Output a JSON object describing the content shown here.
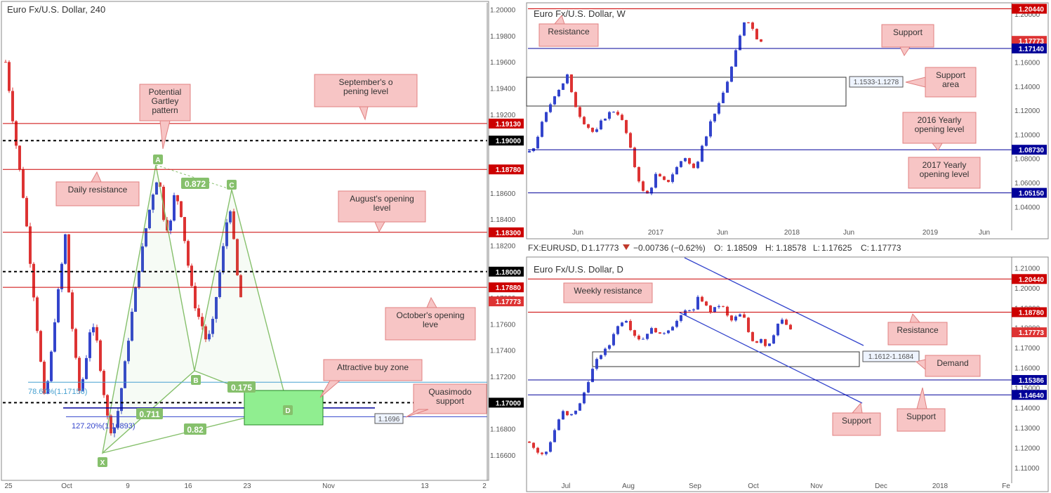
{
  "left_title": "Euro Fx/U.S. Dollar, 240",
  "weekly_title": "Euro Fx/U.S. Dollar, W",
  "daily_title": "Euro Fx/U.S. Dollar, D",
  "ohlc": {
    "symbol": "FX:EURUSD, D",
    "last": "1.17773",
    "change": "−0.00736 (−0.62%)",
    "o_label": "O:",
    "o": "1.18509",
    "h_label": "H:",
    "h": "1.18578",
    "l_label": "L:",
    "l": "1.17625",
    "c_label": "C:",
    "c": "1.17773",
    "down_color": "#c0392b"
  },
  "colors": {
    "up": "#3344cc",
    "down": "#dd3333",
    "resistance": "#cc0000",
    "support": "#000099",
    "harmonic": "#86c06c",
    "buy_zone": "#90ee90",
    "callout": "#f7c5c5",
    "callout_border": "#e08080"
  },
  "chart_data": [
    {
      "type": "candlestick",
      "title": "Euro Fx/U.S. Dollar, 240",
      "ylim": [
        1.1645,
        1.2003
      ],
      "y_ticks": [
        "1.20000",
        "1.19800",
        "1.19600",
        "1.19400",
        "1.19200",
        "1.19000",
        "1.18800",
        "1.18600",
        "1.18400",
        "1.18200",
        "1.18000",
        "1.17800",
        "1.17600",
        "1.17400",
        "1.17200",
        "1.17000",
        "1.16800",
        "1.16600"
      ],
      "x_ticks": [
        "25",
        "Oct",
        "9",
        "16",
        "23",
        "Nov",
        "13",
        "2"
      ],
      "price_labels": [
        "1.19130",
        "1.19000",
        "1.18780",
        "1.18300",
        "1.18000",
        "1.17880",
        "1.17773",
        "1.17000"
      ],
      "callouts": [
        "September's opening level",
        "Potential Gartley pattern",
        "Daily resistance",
        "August's opening level",
        "October's opening level",
        "Attractive buy zone",
        "Quasimodo support"
      ],
      "harmonic_points": [
        "X",
        "A",
        "B",
        "C",
        "D"
      ],
      "harmonic_ratios": [
        "0.872",
        "0.175",
        "0.711",
        "0.82"
      ],
      "fib_labels": [
        "78.60%(1.17156)",
        "127.20%(1.16893)"
      ],
      "quasimodo_label": "1.1696",
      "path": [
        [
          0,
          1.196
        ],
        [
          5,
          1.194
        ],
        [
          12,
          1.191
        ],
        [
          20,
          1.188
        ],
        [
          28,
          1.185
        ],
        [
          38,
          1.18
        ],
        [
          48,
          1.175
        ],
        [
          58,
          1.17
        ],
        [
          66,
          1.173
        ],
        [
          74,
          1.177
        ],
        [
          82,
          1.18
        ],
        [
          88,
          1.183
        ],
        [
          94,
          1.178
        ],
        [
          102,
          1.174
        ],
        [
          110,
          1.1705
        ],
        [
          118,
          1.173
        ],
        [
          126,
          1.176
        ],
        [
          134,
          1.175
        ],
        [
          142,
          1.172
        ],
        [
          150,
          1.169
        ],
        [
          158,
          1.1675
        ],
        [
          165,
          1.169
        ],
        [
          174,
          1.172
        ],
        [
          182,
          1.175
        ],
        [
          190,
          1.178
        ],
        [
          200,
          1.181
        ],
        [
          210,
          1.184
        ],
        [
          218,
          1.186
        ],
        [
          226,
          1.1875
        ],
        [
          234,
          1.184
        ],
        [
          242,
          1.183
        ],
        [
          250,
          1.186
        ],
        [
          258,
          1.185
        ],
        [
          266,
          1.182
        ],
        [
          274,
          1.179
        ],
        [
          282,
          1.177
        ],
        [
          290,
          1.176
        ],
        [
          298,
          1.1745
        ],
        [
          306,
          1.176
        ],
        [
          314,
          1.179
        ],
        [
          320,
          1.181
        ],
        [
          326,
          1.1835
        ],
        [
          332,
          1.185
        ],
        [
          338,
          1.182
        ],
        [
          345,
          1.1785
        ],
        [
          350,
          1.1777
        ]
      ]
    },
    {
      "type": "candlestick",
      "title": "Euro Fx/U.S. Dollar, W",
      "ylim": [
        1.025,
        1.207
      ],
      "y_ticks": [
        "1.20000",
        "1.18000",
        "1.16000",
        "1.14000",
        "1.12000",
        "1.10000",
        "1.08000",
        "1.06000",
        "1.04000"
      ],
      "x_ticks": [
        "Jun",
        "2017",
        "Jun",
        "2018",
        "Jun",
        "2019",
        "Jun"
      ],
      "price_labels": [
        "1.20440",
        "1.17773",
        "1.17140",
        "1.08730",
        "1.05150"
      ],
      "callouts": [
        "Resistance",
        "Support",
        "Support area",
        "2016 Yearly opening level",
        "2017 Yearly opening level"
      ],
      "zone_label": "1.1533-1.1278",
      "path": [
        [
          0,
          1.085
        ],
        [
          8,
          1.09
        ],
        [
          15,
          1.105
        ],
        [
          22,
          1.115
        ],
        [
          30,
          1.125
        ],
        [
          38,
          1.135
        ],
        [
          46,
          1.14
        ],
        [
          54,
          1.15
        ],
        [
          62,
          1.13
        ],
        [
          70,
          1.118
        ],
        [
          78,
          1.11
        ],
        [
          86,
          1.105
        ],
        [
          94,
          1.1
        ],
        [
          102,
          1.11
        ],
        [
          110,
          1.115
        ],
        [
          118,
          1.12
        ],
        [
          126,
          1.118
        ],
        [
          134,
          1.11
        ],
        [
          142,
          1.095
        ],
        [
          150,
          1.075
        ],
        [
          158,
          1.06
        ],
        [
          166,
          1.048
        ],
        [
          174,
          1.055
        ],
        [
          182,
          1.068
        ],
        [
          190,
          1.062
        ],
        [
          198,
          1.06
        ],
        [
          206,
          1.068
        ],
        [
          214,
          1.075
        ],
        [
          222,
          1.082
        ],
        [
          230,
          1.075
        ],
        [
          238,
          1.07
        ],
        [
          246,
          1.09
        ],
        [
          254,
          1.1
        ],
        [
          262,
          1.115
        ],
        [
          270,
          1.122
        ],
        [
          278,
          1.135
        ],
        [
          286,
          1.148
        ],
        [
          294,
          1.165
        ],
        [
          302,
          1.182
        ],
        [
          310,
          1.198
        ],
        [
          318,
          1.19
        ],
        [
          326,
          1.18
        ],
        [
          332,
          1.178
        ]
      ]
    },
    {
      "type": "candlestick",
      "title": "Euro Fx/U.S. Dollar, D",
      "ylim": [
        1.105,
        1.214
      ],
      "y_ticks": [
        "1.21000",
        "1.20000",
        "1.19000",
        "1.18000",
        "1.17000",
        "1.16000",
        "1.15000",
        "1.14000",
        "1.13000",
        "1.12000",
        "1.11000"
      ],
      "x_ticks": [
        "Jul",
        "Aug",
        "Sep",
        "Oct",
        "Nov",
        "Dec",
        "2018",
        "Fe"
      ],
      "price_labels": [
        "1.20440",
        "1.18780",
        "1.17773",
        "1.15386",
        "1.14640"
      ],
      "callouts": [
        "Weekly resistance",
        "Resistance",
        "Demand",
        "Support",
        "Support"
      ],
      "zone_label": "1.1612-1.1684",
      "path": [
        [
          0,
          1.123
        ],
        [
          8,
          1.119
        ],
        [
          16,
          1.116
        ],
        [
          24,
          1.118
        ],
        [
          32,
          1.125
        ],
        [
          40,
          1.133
        ],
        [
          48,
          1.138
        ],
        [
          56,
          1.135
        ],
        [
          64,
          1.138
        ],
        [
          72,
          1.142
        ],
        [
          80,
          1.15
        ],
        [
          88,
          1.158
        ],
        [
          96,
          1.164
        ],
        [
          104,
          1.168
        ],
        [
          112,
          1.17
        ],
        [
          120,
          1.178
        ],
        [
          128,
          1.182
        ],
        [
          136,
          1.185
        ],
        [
          144,
          1.179
        ],
        [
          152,
          1.175
        ],
        [
          160,
          1.174
        ],
        [
          168,
          1.178
        ],
        [
          176,
          1.18
        ],
        [
          184,
          1.176
        ],
        [
          192,
          1.178
        ],
        [
          200,
          1.18
        ],
        [
          208,
          1.183
        ],
        [
          216,
          1.186
        ],
        [
          224,
          1.19
        ],
        [
          232,
          1.188
        ],
        [
          240,
          1.196
        ],
        [
          248,
          1.192
        ],
        [
          256,
          1.188
        ],
        [
          264,
          1.19
        ],
        [
          272,
          1.192
        ],
        [
          280,
          1.186
        ],
        [
          288,
          1.183
        ],
        [
          296,
          1.187
        ],
        [
          304,
          1.185
        ],
        [
          312,
          1.176
        ],
        [
          320,
          1.172
        ],
        [
          328,
          1.175
        ],
        [
          336,
          1.17
        ],
        [
          344,
          1.175
        ],
        [
          352,
          1.182
        ],
        [
          360,
          1.184
        ],
        [
          368,
          1.179
        ],
        [
          374,
          1.1777
        ]
      ]
    }
  ]
}
